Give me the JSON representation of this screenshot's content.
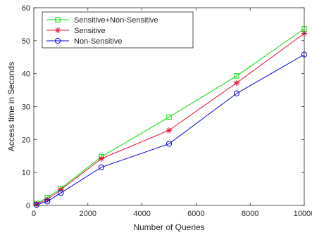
{
  "chart_data": {
    "type": "line",
    "xlabel": "Number of Queries",
    "ylabel": "Access time in Seconds",
    "xlim": [
      0,
      10000
    ],
    "ylim": [
      0,
      60
    ],
    "xticks": [
      0,
      2000,
      4000,
      6000,
      8000,
      10000
    ],
    "yticks": [
      0,
      10,
      20,
      30,
      40,
      50,
      60
    ],
    "grid": false,
    "legend_position": "top-left",
    "x": [
      100,
      500,
      1000,
      2500,
      5000,
      7500,
      10000
    ],
    "series": [
      {
        "name": "Sensitive+Non-Sensitive",
        "color": "#00e000",
        "marker": "square",
        "values": [
          0.6,
          2.4,
          5.2,
          14.8,
          26.8,
          39.3,
          53.6
        ]
      },
      {
        "name": "Sensitive",
        "color": "#e8102e",
        "marker": "asterisk",
        "values": [
          0.4,
          1.8,
          4.8,
          14.2,
          22.8,
          37.2,
          52.2
        ]
      },
      {
        "name": "Non-Sensitive",
        "color": "#0000e0",
        "marker": "circle",
        "values": [
          0.2,
          1.2,
          3.8,
          11.6,
          18.7,
          34.0,
          45.8
        ]
      }
    ]
  }
}
